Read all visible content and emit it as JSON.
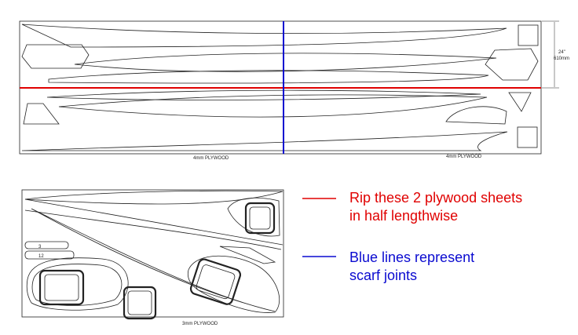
{
  "sheet_top": {
    "label_left": "4mm PLYWOOD",
    "label_right": "4mm PLYWOOD",
    "dim_imperial": "24\"",
    "dim_metric": "610mm"
  },
  "sheet_bottom": {
    "label": "3mm PLYWOOD",
    "part_3": "3",
    "part_12": "12"
  },
  "legend": {
    "red_line1": "Rip these 2 plywood sheets",
    "red_line2": "in half lengthwise",
    "blue_line1": "Blue lines represent",
    "blue_line2": "scarf joints"
  },
  "colors": {
    "rip_line": "#e00000",
    "scarf_line": "#0a0ad0",
    "outline": "#222222"
  }
}
